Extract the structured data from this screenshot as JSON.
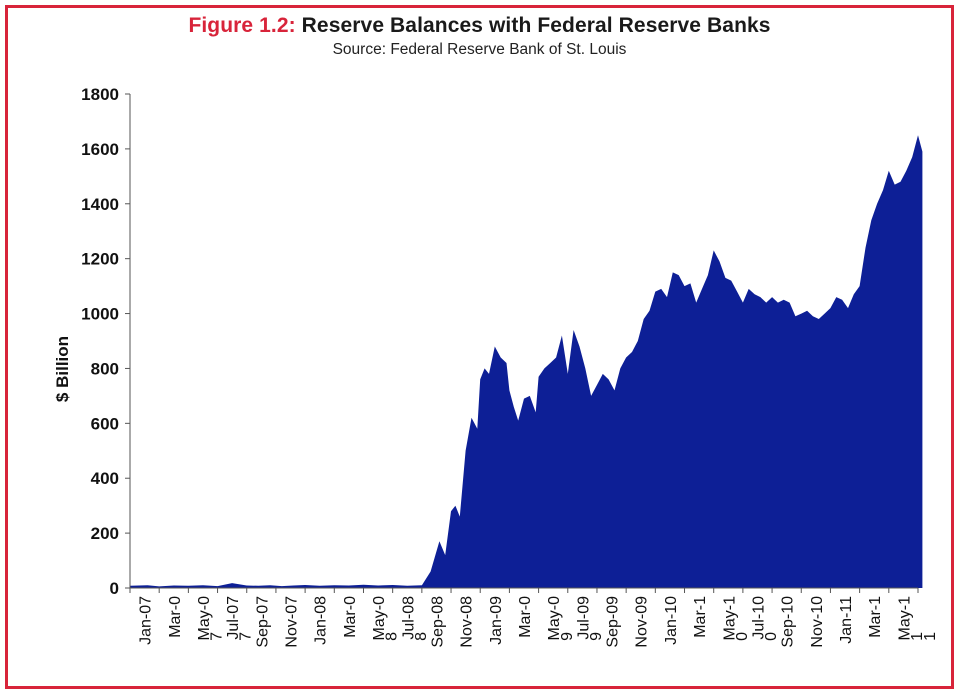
{
  "header": {
    "figure_label": "Figure 1.2:",
    "title": "Reserve Balances with Federal Reserve Banks",
    "subtitle": "Source: Federal Reserve Bank of St. Louis"
  },
  "colors": {
    "frame": "#d8243a",
    "fill": "#0d1f96",
    "figure_label": "#d8243a"
  },
  "chart_data": {
    "type": "area",
    "title": "Reserve Balances with Federal Reserve Banks",
    "subtitle": "Source: Federal Reserve Bank of St. Louis",
    "ylabel": "$ Billion",
    "xlabel": "",
    "ylim": [
      0,
      1800
    ],
    "yticks": [
      "0",
      "200",
      "400",
      "600",
      "800",
      "1000",
      "1200",
      "1400",
      "1600",
      "1800"
    ],
    "xtick_labels": [
      "Jan-07",
      "Mar-0",
      "May-0",
      "Jul-07",
      "Sep-07",
      "Nov-07",
      "Jan-08",
      "Mar-0",
      "May-0",
      "Jul-08",
      "Sep-08",
      "Nov-08",
      "Jan-09",
      "Mar-0",
      "May-0",
      "Jul-09",
      "Sep-09",
      "Nov-09",
      "Jan-10",
      "Mar-1",
      "May-1",
      "Jul-10",
      "Sep-10",
      "Nov-10",
      "Jan-11",
      "Mar-1",
      "May-1"
    ],
    "xtick_overlay": [
      {
        "after": "May-0",
        "text": "7"
      },
      {
        "after": "Jul-07",
        "text": "7"
      },
      {
        "after": "May-0",
        "text": "8"
      },
      {
        "after": "Jul-08",
        "text": "8"
      },
      {
        "after": "May-0",
        "text": "9"
      },
      {
        "after": "Jul-09",
        "text": "9"
      },
      {
        "after": "May-1",
        "text": "0"
      },
      {
        "after": "Jul-10",
        "text": "0"
      },
      {
        "after": "May-1",
        "text": "1"
      }
    ],
    "trailing_tick": "1",
    "grid": false,
    "legend": "none",
    "series": [
      {
        "color": "#0d1f96",
        "x": [
          0,
          0.6,
          1,
          1.5,
          2,
          2.5,
          3,
          3.5,
          4,
          4.4,
          4.8,
          5.2,
          5.6,
          6,
          6.5,
          7,
          7.5,
          8,
          8.5,
          9,
          9.5,
          10,
          10.3,
          10.6,
          10.8,
          11,
          11.15,
          11.3,
          11.5,
          11.7,
          11.9,
          12,
          12.15,
          12.3,
          12.5,
          12.7,
          12.9,
          13,
          13.15,
          13.3,
          13.5,
          13.7,
          13.9,
          14,
          14.2,
          14.4,
          14.6,
          14.8,
          15,
          15.2,
          15.4,
          15.6,
          15.8,
          16,
          16.2,
          16.4,
          16.6,
          16.8,
          17,
          17.2,
          17.4,
          17.6,
          17.8,
          18,
          18.2,
          18.4,
          18.6,
          18.8,
          19,
          19.2,
          19.4,
          19.6,
          19.8,
          20,
          20.2,
          20.4,
          20.6,
          20.8,
          21,
          21.2,
          21.4,
          21.6,
          21.8,
          22,
          22.2,
          22.4,
          22.6,
          22.8,
          23,
          23.2,
          23.4,
          23.6,
          23.8,
          24,
          24.2,
          24.4,
          24.6,
          24.8,
          25,
          25.2,
          25.4,
          25.6,
          25.8,
          26,
          26.2,
          26.4,
          26.6,
          26.8,
          27,
          27.15
        ],
        "values": [
          8,
          10,
          6,
          9,
          8,
          10,
          7,
          18,
          9,
          8,
          10,
          7,
          9,
          11,
          8,
          10,
          9,
          12,
          9,
          11,
          8,
          10,
          60,
          170,
          120,
          280,
          300,
          260,
          500,
          620,
          580,
          760,
          800,
          780,
          880,
          840,
          820,
          720,
          660,
          610,
          690,
          700,
          640,
          770,
          800,
          820,
          840,
          920,
          780,
          940,
          880,
          800,
          700,
          740,
          780,
          760,
          720,
          800,
          840,
          860,
          900,
          980,
          1010,
          1080,
          1090,
          1060,
          1150,
          1140,
          1100,
          1110,
          1040,
          1090,
          1140,
          1230,
          1190,
          1130,
          1120,
          1080,
          1040,
          1090,
          1070,
          1060,
          1040,
          1060,
          1040,
          1050,
          1040,
          990,
          1000,
          1010,
          990,
          980,
          1000,
          1020,
          1060,
          1050,
          1020,
          1070,
          1100,
          1240,
          1340,
          1400,
          1450,
          1520,
          1470,
          1480,
          1520,
          1570,
          1650,
          1590
        ]
      }
    ]
  }
}
